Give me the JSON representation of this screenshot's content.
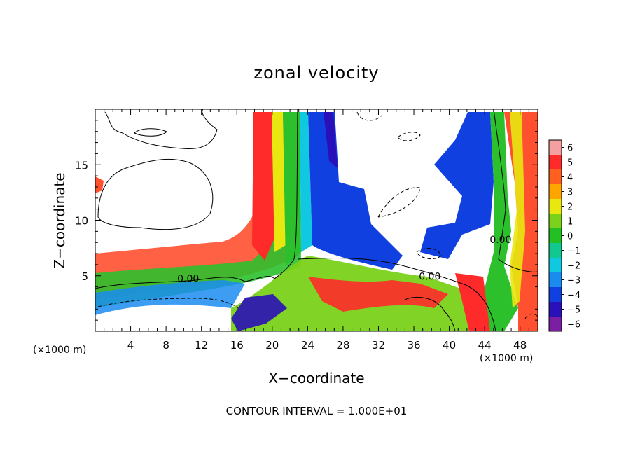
{
  "chart_data": {
    "type": "heatmap",
    "title": "zonal velocity",
    "xlabel": "X−coordinate",
    "ylabel": "Z−coordinate",
    "x_unit_label": "(×1000 m)",
    "z_unit_label": "(×1000 m)",
    "footer": "CONTOUR INTERVAL = 1.000E+01",
    "xlim": [
      0,
      50
    ],
    "ylim": [
      0,
      20
    ],
    "x_ticks": [
      4,
      8,
      12,
      16,
      20,
      24,
      28,
      32,
      36,
      40,
      44,
      48
    ],
    "x_tick_labels": [
      "4",
      "8",
      "12",
      "16",
      "20",
      "24",
      "28",
      "32",
      "36",
      "40",
      "44",
      "48"
    ],
    "y_ticks": [
      5,
      10,
      15
    ],
    "y_tick_labels": [
      "5",
      "10",
      "15"
    ],
    "colorbar": {
      "levels": [
        -6,
        -5,
        -4,
        -3,
        -2,
        -1,
        0,
        1,
        2,
        3,
        4,
        5,
        6
      ],
      "labels": [
        "−6",
        "−5",
        "−4",
        "−3",
        "−2",
        "−1",
        "0",
        "1",
        "2",
        "3",
        "4",
        "5",
        "6"
      ],
      "colors": [
        "#7a1fa2",
        "#2a10b8",
        "#1040e0",
        "#1a8cf0",
        "#10c8e0",
        "#10c890",
        "#22c022",
        "#7ad21a",
        "#e8e810",
        "#ffa500",
        "#ff6020",
        "#ff2a2a",
        "#f4a0a0"
      ]
    },
    "contour_labels": [
      {
        "text": "0.00",
        "x": 10.5,
        "z": 4.7
      },
      {
        "text": "0.00",
        "x": 37.8,
        "z": 4.9
      },
      {
        "text": "0.00",
        "x": 45.8,
        "z": 8.2
      }
    ]
  }
}
